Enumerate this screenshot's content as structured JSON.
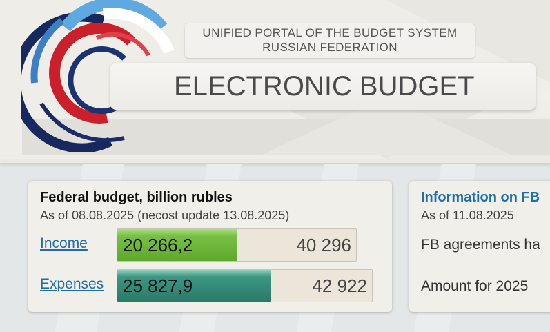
{
  "header": {
    "portal_line1": "UNIFIED PORTAL OF THE BUDGET SYSTEM",
    "portal_line2": "RUSSIAN FEDERATION",
    "site_title": "ELECTRONIC BUDGET"
  },
  "federal_budget": {
    "title": "Federal budget, billion rubles",
    "as_of": "As of 08.08.2025 (necost update 13.08.2025)",
    "income": {
      "label": "Income",
      "fact": "20 266,2",
      "plan": "40 296",
      "fill_fraction": 0.503
    },
    "expenses": {
      "label": "Expenses",
      "fact": "25 827,9",
      "plan": "42 922",
      "fill_fraction": 0.602
    }
  },
  "info_card": {
    "title": "Information on FB",
    "as_of": "As of 11.08.2025",
    "line1": "FB agreements ha",
    "line2": "Amount for 2025"
  },
  "colors": {
    "income_bar": "#6cb536",
    "expense_bar": "#2f8371",
    "link": "#1f6eab",
    "info_title": "#1e6fa8"
  }
}
